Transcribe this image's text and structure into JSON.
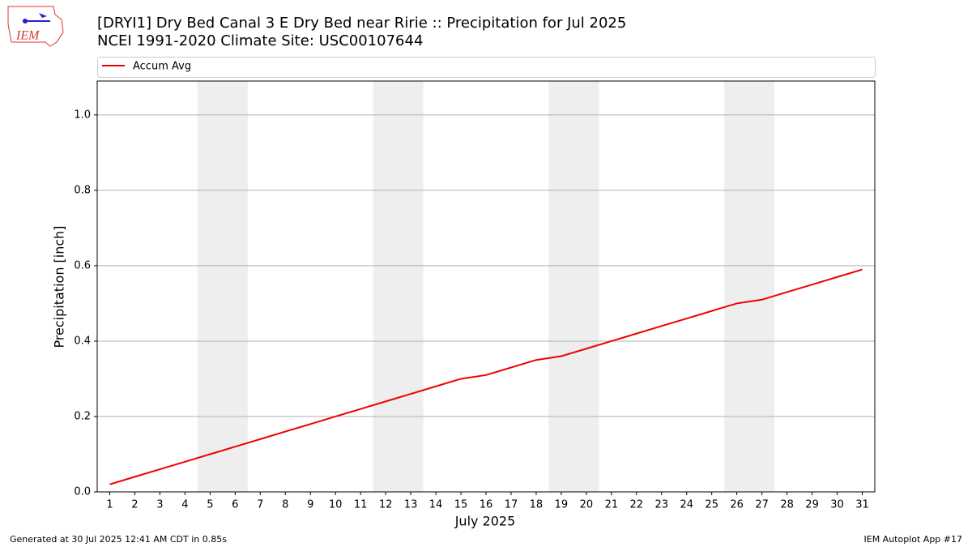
{
  "chart_data": {
    "type": "line",
    "title": "[DRYI1] Dry Bed Canal 3 E Dry Bed near Ririe :: Precipitation for Jul 2025",
    "subtitle": "NCEI 1991-2020 Climate Site: USC00107644",
    "xlabel": "July 2025",
    "ylabel": "Precipitation [inch]",
    "x": [
      1,
      2,
      3,
      4,
      5,
      6,
      7,
      8,
      9,
      10,
      11,
      12,
      13,
      14,
      15,
      16,
      17,
      18,
      19,
      20,
      21,
      22,
      23,
      24,
      25,
      26,
      27,
      28,
      29,
      30,
      31
    ],
    "series": [
      {
        "name": "Accum Avg",
        "color": "#ee0000",
        "values": [
          0.02,
          0.04,
          0.06,
          0.08,
          0.1,
          0.12,
          0.14,
          0.16,
          0.18,
          0.2,
          0.22,
          0.24,
          0.26,
          0.28,
          0.3,
          0.31,
          0.33,
          0.35,
          0.36,
          0.38,
          0.4,
          0.42,
          0.44,
          0.46,
          0.48,
          0.5,
          0.51,
          0.53,
          0.55,
          0.57,
          0.59
        ]
      }
    ],
    "shaded_spans": [
      [
        4.5,
        6.5
      ],
      [
        11.5,
        13.5
      ],
      [
        18.5,
        20.5
      ],
      [
        25.5,
        27.5
      ]
    ],
    "xlim": [
      0.5,
      31.5
    ],
    "xticks": [
      1,
      2,
      3,
      4,
      5,
      6,
      7,
      8,
      9,
      10,
      11,
      12,
      13,
      14,
      15,
      16,
      17,
      18,
      19,
      20,
      21,
      22,
      23,
      24,
      25,
      26,
      27,
      28,
      29,
      30,
      31
    ],
    "ylim": [
      0,
      1.09
    ],
    "yticks": [
      {
        "value": 0,
        "label": "0.0"
      },
      0.2,
      0.4,
      0.6,
      0.8,
      {
        "value": 1,
        "label": "1.0"
      }
    ],
    "grid": true,
    "legend": "top"
  },
  "logo": {
    "text": "IEM"
  },
  "footer": {
    "left": "Generated at 30 Jul 2025 12:41 AM CDT in 0.85s",
    "right": "IEM Autoplot App #17"
  }
}
